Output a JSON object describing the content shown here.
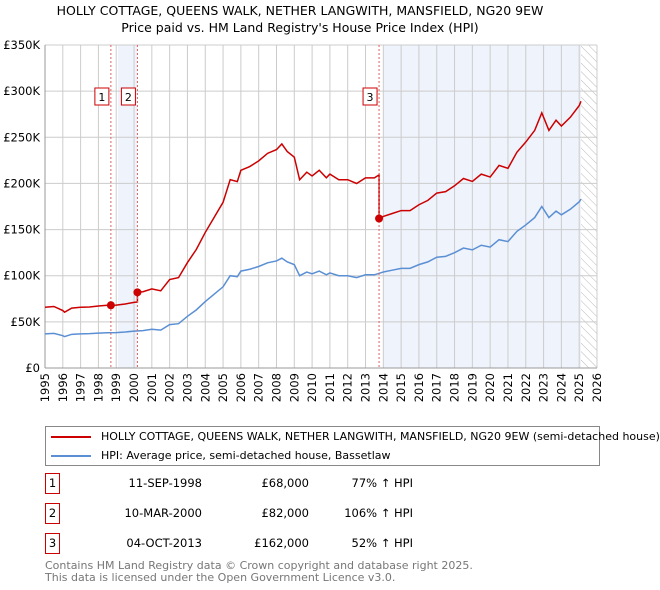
{
  "title": "HOLLY COTTAGE, QUEENS WALK, NETHER LANGWITH, MANSFIELD, NG20 9EW",
  "subtitle": "Price paid vs. HM Land Registry's House Price Index (HPI)",
  "colors": {
    "property": "#cc0000",
    "hpi": "#5b8fd4",
    "shade": "#eef3fc",
    "grid": "#cccccc"
  },
  "chart_data": {
    "type": "line",
    "xlim": [
      1995,
      2026
    ],
    "ylim": [
      0,
      350000
    ],
    "yticks": [
      0,
      50000,
      100000,
      150000,
      200000,
      250000,
      300000,
      350000
    ],
    "ytick_labels": [
      "£0",
      "£50K",
      "£100K",
      "£150K",
      "£200K",
      "£250K",
      "£300K",
      "£350K"
    ],
    "xtick_labels": [
      "1995",
      "1996",
      "1997",
      "1998",
      "1999",
      "2000",
      "2001",
      "2002",
      "2003",
      "2004",
      "2005",
      "2006",
      "2007",
      "2008",
      "2009",
      "2010",
      "2011",
      "2012",
      "2013",
      "2014",
      "2015",
      "2016",
      "2017",
      "2018",
      "2019",
      "2020",
      "2021",
      "2022",
      "2023",
      "2024",
      "2025",
      "2026"
    ],
    "grid": true,
    "forecast_from": 2025.1,
    "hpi_series": {
      "name": "HPI: Average price, semi-detached house, Bassetlaw",
      "x": [
        1995,
        1995.5,
        1996,
        1996.1,
        1996.5,
        1997,
        1997.5,
        1998,
        1998.5,
        1999,
        1999.5,
        2000,
        2000.5,
        2001,
        2001.5,
        2002,
        2002.5,
        2003,
        2003.5,
        2004,
        2004.5,
        2005,
        2005.4,
        2005.8,
        2006,
        2006.5,
        2007,
        2007.5,
        2008,
        2008.3,
        2008.6,
        2009,
        2009.3,
        2009.7,
        2010,
        2010.4,
        2010.8,
        2011,
        2011.5,
        2012,
        2012.5,
        2013,
        2013.5,
        2014,
        2014.5,
        2015,
        2015.5,
        2016,
        2016.5,
        2017,
        2017.5,
        2018,
        2018.5,
        2019,
        2019.5,
        2020,
        2020.5,
        2021,
        2021.5,
        2022,
        2022.5,
        2022.9,
        2023.3,
        2023.7,
        2024,
        2024.5,
        2025,
        2025.1
      ],
      "y": [
        37000,
        37500,
        35000,
        34000,
        36500,
        37000,
        37200,
        37800,
        38200,
        38300,
        39000,
        40000,
        40500,
        42000,
        41000,
        47000,
        48000,
        56000,
        63000,
        72000,
        80000,
        88000,
        100000,
        99000,
        105000,
        107000,
        110000,
        114000,
        116000,
        119000,
        115000,
        112000,
        100000,
        104000,
        102000,
        105000,
        101000,
        103000,
        100000,
        100000,
        98000,
        101000,
        101000,
        104000,
        106000,
        108000,
        108000,
        112000,
        115000,
        120000,
        121000,
        125000,
        130000,
        128000,
        133000,
        131000,
        139000,
        137000,
        148000,
        155000,
        163000,
        175000,
        163000,
        170000,
        166000,
        172000,
        180000,
        183000
      ]
    },
    "property_series": {
      "name": "HOLLY COTTAGE, QUEENS WALK, NETHER LANGWITH, MANSFIELD, NG20 9EW (semi-detached house)"
    },
    "sales": [
      {
        "id": "1",
        "x": 1998.7,
        "price": 68000,
        "date": "11-SEP-1998",
        "price_label": "£68,000",
        "hpi_label": "77% ↑ HPI"
      },
      {
        "id": "2",
        "x": 2000.19,
        "price": 82000,
        "date": "10-MAR-2000",
        "price_label": "£82,000",
        "hpi_label": "106% ↑ HPI"
      },
      {
        "id": "3",
        "x": 2013.76,
        "price": 162000,
        "date": "04-OCT-2013",
        "price_label": "£162,000",
        "hpi_label": "52% ↑ HPI"
      }
    ]
  },
  "footer": {
    "line1": "Contains HM Land Registry data © Crown copyright and database right 2025.",
    "line2": "This data is licensed under the Open Government Licence v3.0."
  }
}
